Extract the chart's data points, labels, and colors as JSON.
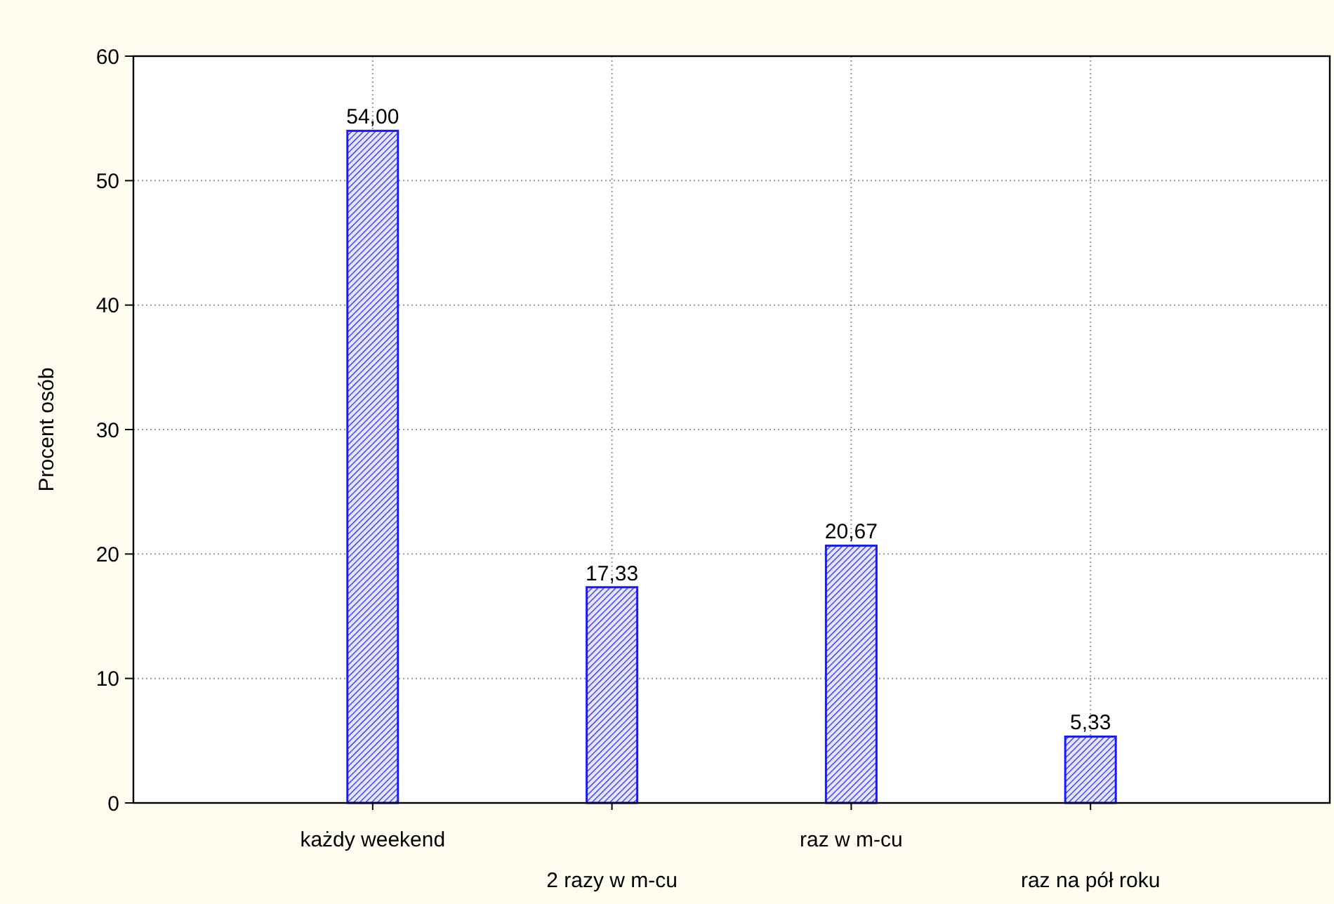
{
  "chart_data": {
    "type": "bar",
    "ylabel": "Procent osób",
    "categories": [
      "każdy weekend",
      "2 razy w m-cu",
      "raz w m-cu",
      "raz na pół roku"
    ],
    "values": [
      54,
      17.33,
      20.67,
      5.33
    ],
    "value_labels": [
      "54,00",
      "17,33",
      "20,67",
      "5,33"
    ],
    "color": "#1a1aff",
    "ylim": [
      0,
      60
    ],
    "yticks": [
      0,
      10,
      20,
      30,
      40,
      50,
      60
    ],
    "grid": true
  }
}
